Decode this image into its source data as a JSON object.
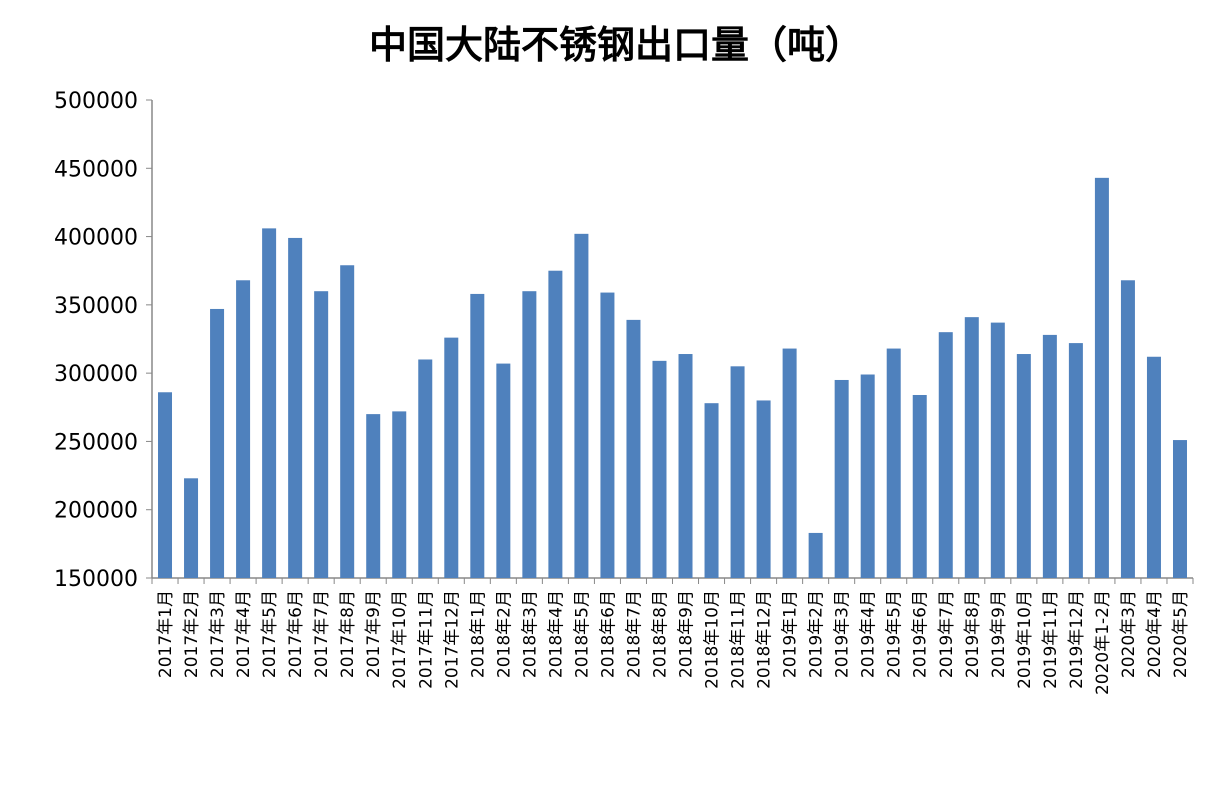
{
  "chart_data": {
    "type": "bar",
    "title": "中国大陆不锈钢出口量（吨）",
    "xlabel": "",
    "ylabel": "",
    "ylim": [
      150000,
      500000
    ],
    "yticks": [
      "150000",
      "200000",
      "250000",
      "300000",
      "350000",
      "400000",
      "450000",
      "500000"
    ],
    "grid": false,
    "color": "#4F81BD",
    "categories": [
      "2017年1月",
      "2017年2月",
      "2017年3月",
      "2017年4月",
      "2017年5月",
      "2017年6月",
      "2017年7月",
      "2017年8月",
      "2017年9月",
      "2017年10月",
      "2017年11月",
      "2017年12月",
      "2018年1月",
      "2018年2月",
      "2018年3月",
      "2018年4月",
      "2018年5月",
      "2018年6月",
      "2018年7月",
      "2018年8月",
      "2018年9月",
      "2018年10月",
      "2018年11月",
      "2018年12月",
      "2019年1月",
      "2019年2月",
      "2019年3月",
      "2019年4月",
      "2019年5月",
      "2019年6月",
      "2019年7月",
      "2019年8月",
      "2019年9月",
      "2019年10月",
      "2019年11月",
      "2019年12月",
      "2020年1-2月",
      "2020年3月",
      "2020年4月",
      "2020年5月"
    ],
    "values": [
      286000,
      223000,
      347000,
      368000,
      406000,
      399000,
      360000,
      379000,
      270000,
      272000,
      310000,
      326000,
      358000,
      307000,
      360000,
      375000,
      402000,
      359000,
      339000,
      309000,
      314000,
      278000,
      305000,
      280000,
      318000,
      183000,
      295000,
      299000,
      318000,
      284000,
      330000,
      341000,
      337000,
      314000,
      328000,
      322000,
      443000,
      368000,
      312000,
      251000
    ]
  }
}
